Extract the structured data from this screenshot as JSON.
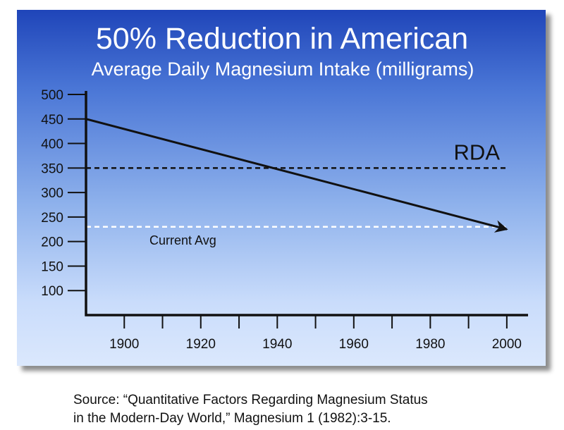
{
  "colors": {
    "title": "#ffffff",
    "axis": "#111111",
    "trend": "#111111",
    "rda_line": "#111111",
    "current_line": "#ffffff"
  },
  "chart_data": {
    "type": "line",
    "title": "50% Reduction in American",
    "subtitle": "Average Daily Magnesium Intake (milligrams)",
    "xlabel": "",
    "ylabel": "",
    "x_ticks": [
      "1900",
      "1920",
      "1940",
      "1960",
      "1980",
      "2000"
    ],
    "y_ticks": [
      "500",
      "450",
      "400",
      "350",
      "300",
      "250",
      "200",
      "150",
      "100"
    ],
    "xlim": [
      1890,
      2005
    ],
    "ylim": [
      50,
      500
    ],
    "grid": false,
    "series": [
      {
        "values": [
          {
            "x": 1890,
            "y": 450
          },
          {
            "x": 2000,
            "y": 225
          }
        ]
      }
    ],
    "reference_lines": [
      {
        "label": "RDA",
        "y": 350,
        "x": [
          1890,
          2000
        ]
      },
      {
        "label": "Current Avg",
        "y": 230,
        "x": [
          1890,
          2000
        ]
      }
    ]
  },
  "source": {
    "line1": "Source: “Quantitative Factors Regarding Magnesium Status",
    "line2": "in the Modern-Day World,” Magnesium 1 (1982):3-15."
  }
}
